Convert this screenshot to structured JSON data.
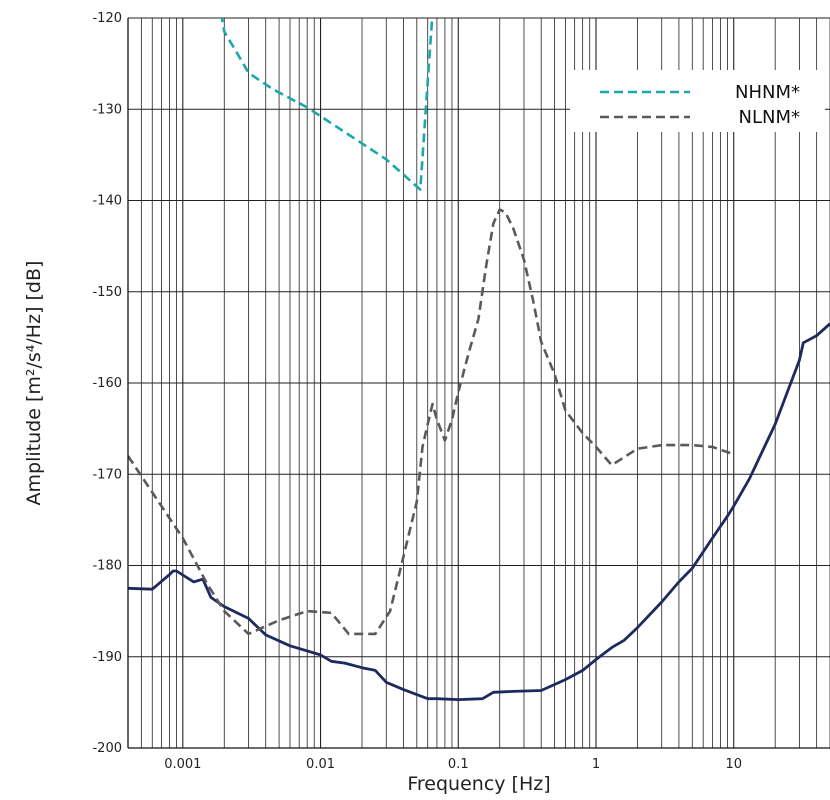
{
  "chart_data": {
    "type": "line",
    "title": "",
    "xlabel": "Frequency [Hz]",
    "ylabel": "Amplitude [m²/s⁴/Hz] [dB]",
    "xscale": "log",
    "xlim": [
      0.0004,
      50
    ],
    "ylim": [
      -200,
      -120
    ],
    "grid": true,
    "legend": "top-right",
    "x_ticks": [
      {
        "value": 0.001,
        "label": "0.001"
      },
      {
        "value": 0.01,
        "label": "0.01"
      },
      {
        "value": 0.1,
        "label": "0.1"
      },
      {
        "value": 1,
        "label": "1"
      },
      {
        "value": 10,
        "label": "10"
      }
    ],
    "y_ticks": [
      {
        "value": -120,
        "label": "-120"
      },
      {
        "value": -130,
        "label": "-130"
      },
      {
        "value": -140,
        "label": "-140"
      },
      {
        "value": -150,
        "label": "-150"
      },
      {
        "value": -160,
        "label": "-160"
      },
      {
        "value": -170,
        "label": "-170"
      },
      {
        "value": -180,
        "label": "-180"
      },
      {
        "value": -190,
        "label": "-190"
      },
      {
        "value": -200,
        "label": "-200"
      }
    ],
    "series": [
      {
        "name": "NHNM*",
        "color": "#1aa8a8",
        "style": "dashed",
        "x": [
          0.0019,
          0.002,
          0.0024,
          0.003,
          0.0045,
          0.008,
          0.015,
          0.03,
          0.053,
          0.06,
          0.065
        ],
        "y": [
          -119.5,
          -121.5,
          -123.5,
          -126,
          -127.8,
          -129.8,
          -132.5,
          -135.5,
          -138.8,
          -127,
          -119.5
        ]
      },
      {
        "name": "NLNM*",
        "color": "#5a5a5a",
        "style": "dashed",
        "x": [
          0.0004,
          0.0007,
          0.001,
          0.0015,
          0.002,
          0.003,
          0.005,
          0.008,
          0.012,
          0.016,
          0.025,
          0.032,
          0.04,
          0.05,
          0.055,
          0.06,
          0.065,
          0.07,
          0.08,
          0.09,
          0.1,
          0.12,
          0.14,
          0.16,
          0.18,
          0.2,
          0.22,
          0.25,
          0.3,
          0.35,
          0.4,
          0.5,
          0.6,
          0.8,
          1.0,
          1.3,
          2.0,
          3.0,
          5.0,
          7.0,
          10.0
        ],
        "y": [
          -168,
          -173.5,
          -177,
          -182,
          -185,
          -187.5,
          -186,
          -185,
          -185.2,
          -187.5,
          -187.5,
          -185,
          -179,
          -173,
          -167,
          -164.5,
          -162.3,
          -164,
          -166.3,
          -164,
          -161,
          -156.5,
          -153,
          -147,
          -142.5,
          -141,
          -141.3,
          -143,
          -146.5,
          -151,
          -155.5,
          -159,
          -163,
          -165.5,
          -167,
          -169,
          -167.2,
          -166.8,
          -166.8,
          -167,
          -167.8
        ]
      },
      {
        "name": "",
        "color": "#1c2a5e",
        "style": "solid",
        "x": [
          0.0004,
          0.0006,
          0.0008,
          0.00085,
          0.0009,
          0.0012,
          0.0014,
          0.0016,
          0.002,
          0.003,
          0.004,
          0.006,
          0.01,
          0.012,
          0.015,
          0.02,
          0.025,
          0.03,
          0.04,
          0.06,
          0.07,
          0.1,
          0.15,
          0.18,
          0.25,
          0.4,
          0.6,
          0.8,
          1.0,
          1.3,
          1.6,
          2.0,
          3.0,
          4.0,
          5.0,
          7.0,
          9.0,
          10.0,
          13.0,
          20.0,
          30.0,
          32.0,
          40.0,
          50.0
        ],
        "y": [
          -182.5,
          -182.6,
          -181,
          -180.6,
          -180.6,
          -181.8,
          -181.5,
          -183.5,
          -184.5,
          -185.8,
          -187.6,
          -188.8,
          -189.8,
          -190.5,
          -190.7,
          -191.2,
          -191.5,
          -192.8,
          -193.6,
          -194.6,
          -194.6,
          -194.7,
          -194.6,
          -193.9,
          -193.8,
          -193.7,
          -192.5,
          -191.5,
          -190.3,
          -189,
          -188.2,
          -186.8,
          -184,
          -181.8,
          -180.3,
          -177,
          -174.6,
          -173.5,
          -170.5,
          -164.5,
          -157.5,
          -155.6,
          -154.8,
          -153.5
        ]
      }
    ]
  }
}
